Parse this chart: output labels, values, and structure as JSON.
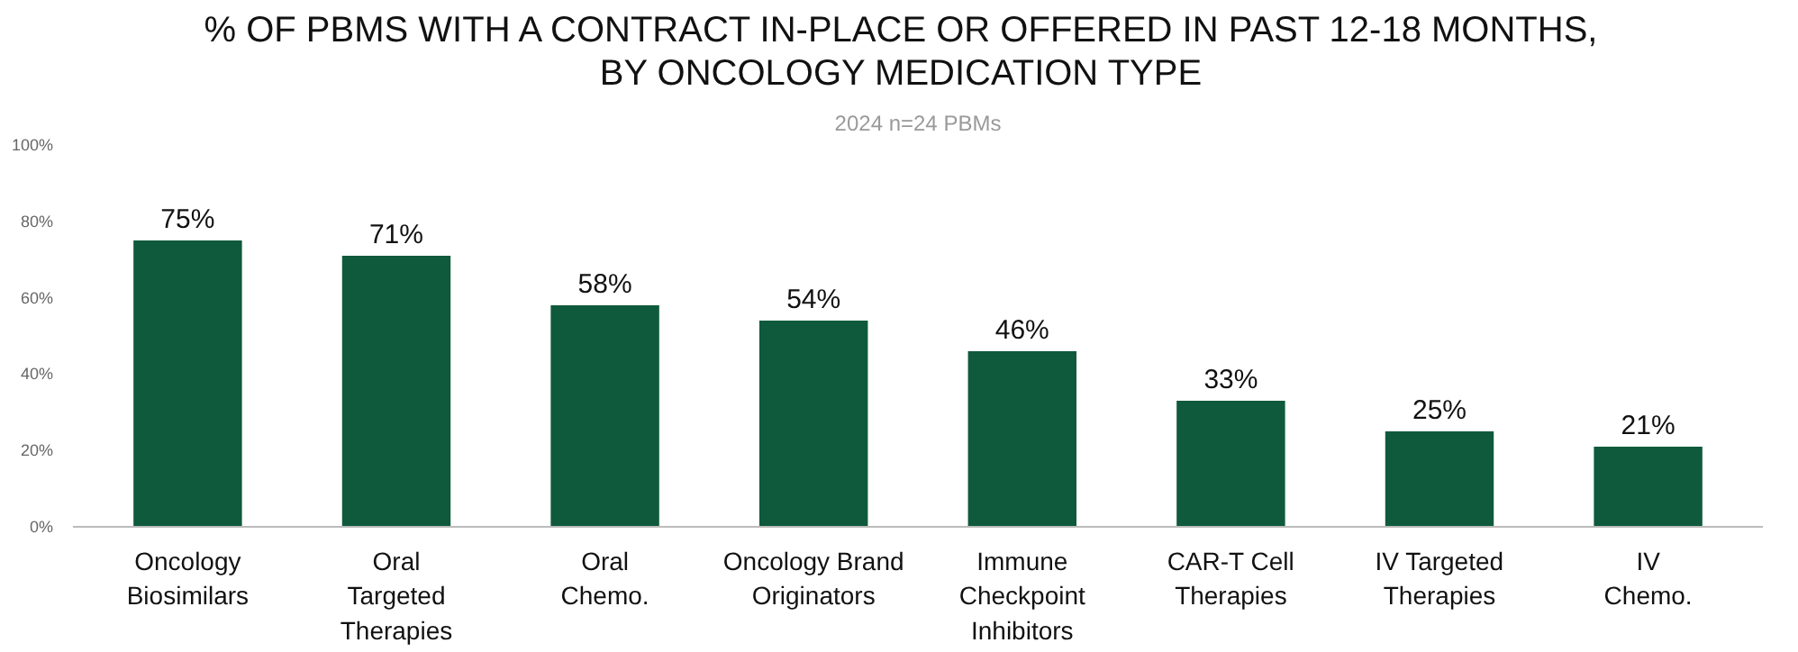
{
  "chart_data": {
    "type": "bar",
    "title": "% OF PBMS WITH A CONTRACT IN-PLACE OR OFFERED IN PAST 12-18 MONTHS,\nBY ONCOLOGY MEDICATION TYPE",
    "subtitle": "2024 n=24 PBMs",
    "categories": [
      "Oncology\nBiosimilars",
      "Oral\nTargeted\nTherapies",
      "Oral\nChemo.",
      "Oncology Brand\nOriginators",
      "Immune\nCheckpoint\nInhibitors",
      "CAR-T Cell\nTherapies",
      "IV Targeted\nTherapies",
      "IV\nChemo."
    ],
    "values": [
      75,
      71,
      58,
      54,
      46,
      33,
      25,
      21
    ],
    "value_labels": [
      "75%",
      "71%",
      "58%",
      "54%",
      "46%",
      "33%",
      "25%",
      "21%"
    ],
    "color": "#0f5a3c",
    "ylim": [
      0,
      100
    ],
    "yticks": [
      {
        "value": 0,
        "label": "0%"
      },
      {
        "value": 20,
        "label": "20%"
      },
      {
        "value": 40,
        "label": "40%"
      },
      {
        "value": 60,
        "label": "60%"
      },
      {
        "value": 80,
        "label": "80%"
      },
      {
        "value": 100,
        "label": "100%"
      }
    ],
    "grid": false
  }
}
